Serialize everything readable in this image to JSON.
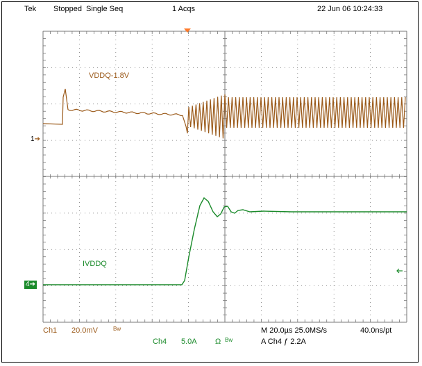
{
  "header": {
    "brand": "Tek",
    "status": "Stopped",
    "mode": "Single Seq",
    "acqs": "1 Acqs",
    "datetime": "22 Jun 06 10:24:33"
  },
  "channels": {
    "ch1": {
      "marker": "1",
      "trace_label": "VDDQ-1.8V",
      "color": "#9b5a1a"
    },
    "ch4": {
      "marker": "4",
      "trace_label": "IVDDQ",
      "color": "#1a8a2a"
    }
  },
  "footer": {
    "ch1_name": "Ch1",
    "ch1_scale": "20.0mV",
    "ch1_bw": "Bw",
    "ch4_name": "Ch4",
    "ch4_scale": "5.0A",
    "ch4_ohm": "Ω",
    "ch4_bw": "Bw",
    "timebase": "M 20.0µs 25.0MS/s",
    "record": "40.0ns/pt",
    "trigger": "A  Ch4  ƒ  2.2A"
  },
  "colors": {
    "grid": "#777777",
    "trigger_marker": "#ff7a2a"
  }
}
